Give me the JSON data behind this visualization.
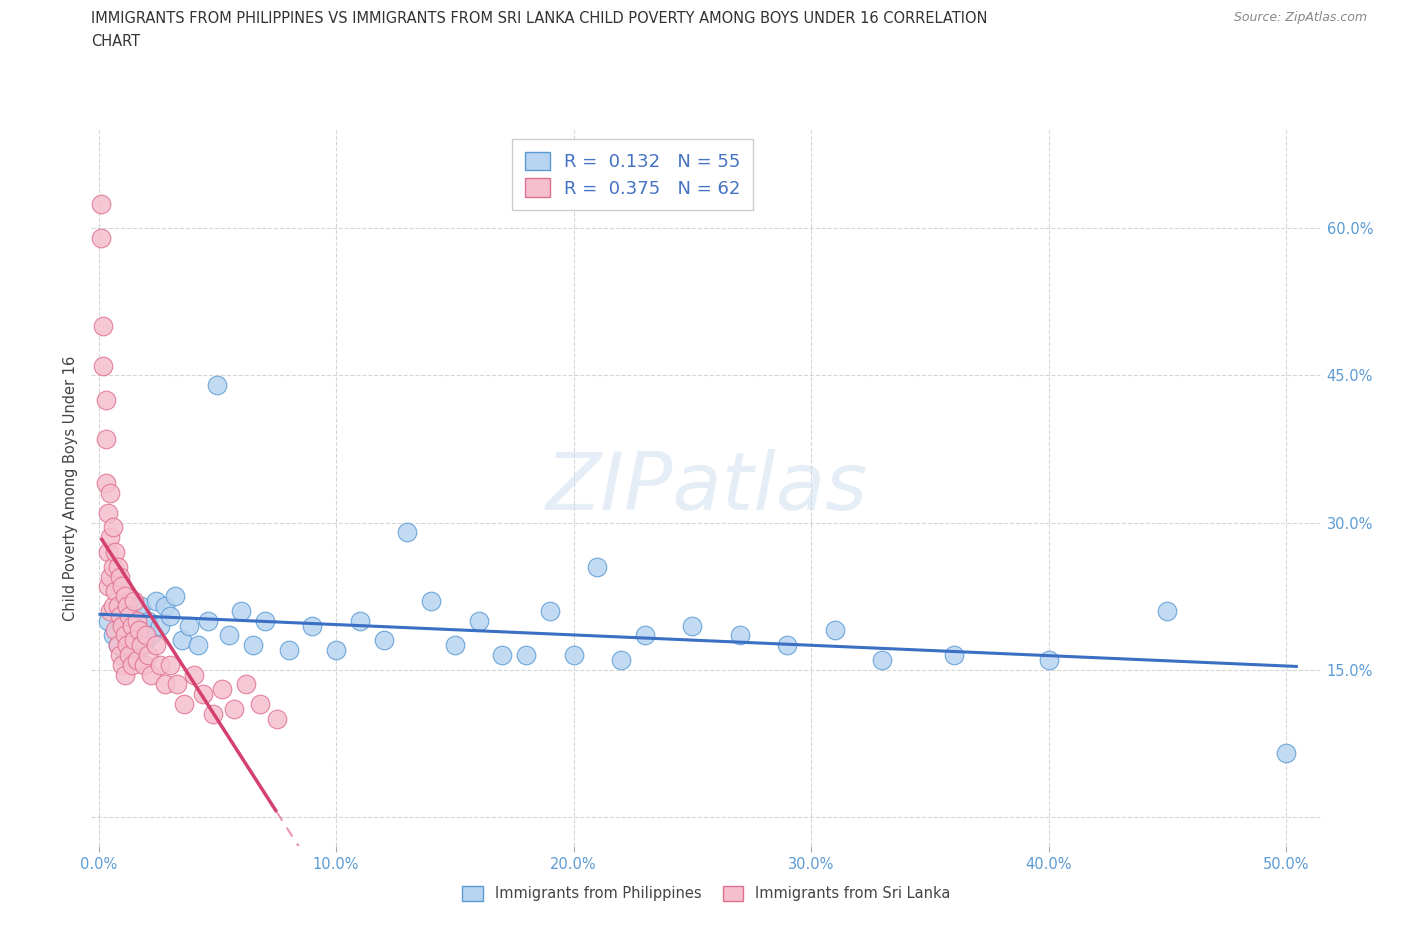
{
  "title_line1": "IMMIGRANTS FROM PHILIPPINES VS IMMIGRANTS FROM SRI LANKA CHILD POVERTY AMONG BOYS UNDER 16 CORRELATION",
  "title_line2": "CHART",
  "source_text": "Source: ZipAtlas.com",
  "ylabel": "Child Poverty Among Boys Under 16",
  "xlim": [
    -0.003,
    0.515
  ],
  "ylim": [
    -0.03,
    0.7
  ],
  "xticks": [
    0.0,
    0.1,
    0.2,
    0.3,
    0.4,
    0.5
  ],
  "xticklabels": [
    "0.0%",
    "10.0%",
    "20.0%",
    "30.0%",
    "40.0%",
    "50.0%"
  ],
  "yticks_right": [
    0.15,
    0.3,
    0.45,
    0.6
  ],
  "yticklabels_right": [
    "15.0%",
    "30.0%",
    "45.0%",
    "60.0%"
  ],
  "yticks_grid": [
    0.0,
    0.15,
    0.3,
    0.45,
    0.6
  ],
  "grid_color": "#cccccc",
  "background_color": "#ffffff",
  "watermark": "ZIPatlas",
  "philippines_face_color": "#b8d4f0",
  "philippines_edge_color": "#5b9bd5",
  "srilanka_face_color": "#f5bfce",
  "srilanka_edge_color": "#e07090",
  "philippines_line_color": "#3a6fc4",
  "srilanka_line_color": "#d44070",
  "legend_R_philippines": "0.132",
  "legend_N_philippines": "55",
  "legend_R_srilanka": "0.375",
  "legend_N_srilanka": "62",
  "philippines_x": [
    0.004,
    0.006,
    0.008,
    0.01,
    0.011,
    0.012,
    0.013,
    0.014,
    0.015,
    0.016,
    0.017,
    0.018,
    0.019,
    0.02,
    0.021,
    0.022,
    0.024,
    0.026,
    0.028,
    0.03,
    0.032,
    0.035,
    0.038,
    0.042,
    0.046,
    0.05,
    0.055,
    0.06,
    0.065,
    0.07,
    0.08,
    0.09,
    0.1,
    0.11,
    0.12,
    0.13,
    0.14,
    0.15,
    0.16,
    0.17,
    0.18,
    0.19,
    0.2,
    0.21,
    0.22,
    0.23,
    0.25,
    0.27,
    0.29,
    0.31,
    0.33,
    0.36,
    0.4,
    0.45,
    0.5
  ],
  "philippines_y": [
    0.2,
    0.185,
    0.175,
    0.21,
    0.165,
    0.195,
    0.18,
    0.215,
    0.17,
    0.2,
    0.185,
    0.215,
    0.175,
    0.195,
    0.2,
    0.185,
    0.22,
    0.195,
    0.215,
    0.205,
    0.225,
    0.18,
    0.195,
    0.175,
    0.2,
    0.44,
    0.185,
    0.21,
    0.175,
    0.2,
    0.17,
    0.195,
    0.17,
    0.2,
    0.18,
    0.29,
    0.22,
    0.175,
    0.2,
    0.165,
    0.165,
    0.21,
    0.165,
    0.255,
    0.16,
    0.185,
    0.195,
    0.185,
    0.175,
    0.19,
    0.16,
    0.165,
    0.16,
    0.21,
    0.065
  ],
  "srilanka_x": [
    0.001,
    0.001,
    0.002,
    0.002,
    0.003,
    0.003,
    0.003,
    0.004,
    0.004,
    0.004,
    0.005,
    0.005,
    0.005,
    0.005,
    0.006,
    0.006,
    0.006,
    0.007,
    0.007,
    0.007,
    0.008,
    0.008,
    0.008,
    0.009,
    0.009,
    0.009,
    0.01,
    0.01,
    0.01,
    0.011,
    0.011,
    0.011,
    0.012,
    0.012,
    0.013,
    0.013,
    0.014,
    0.014,
    0.015,
    0.015,
    0.016,
    0.016,
    0.017,
    0.018,
    0.019,
    0.02,
    0.021,
    0.022,
    0.024,
    0.026,
    0.028,
    0.03,
    0.033,
    0.036,
    0.04,
    0.044,
    0.048,
    0.052,
    0.057,
    0.062,
    0.068,
    0.075
  ],
  "srilanka_y": [
    0.625,
    0.59,
    0.5,
    0.46,
    0.425,
    0.385,
    0.34,
    0.31,
    0.27,
    0.235,
    0.33,
    0.285,
    0.245,
    0.21,
    0.295,
    0.255,
    0.215,
    0.27,
    0.23,
    0.19,
    0.255,
    0.215,
    0.175,
    0.245,
    0.205,
    0.165,
    0.235,
    0.195,
    0.155,
    0.225,
    0.185,
    0.145,
    0.215,
    0.175,
    0.205,
    0.165,
    0.195,
    0.155,
    0.22,
    0.18,
    0.2,
    0.16,
    0.19,
    0.175,
    0.155,
    0.185,
    0.165,
    0.145,
    0.175,
    0.155,
    0.135,
    0.155,
    0.135,
    0.115,
    0.145,
    0.125,
    0.105,
    0.13,
    0.11,
    0.135,
    0.115,
    0.1
  ]
}
